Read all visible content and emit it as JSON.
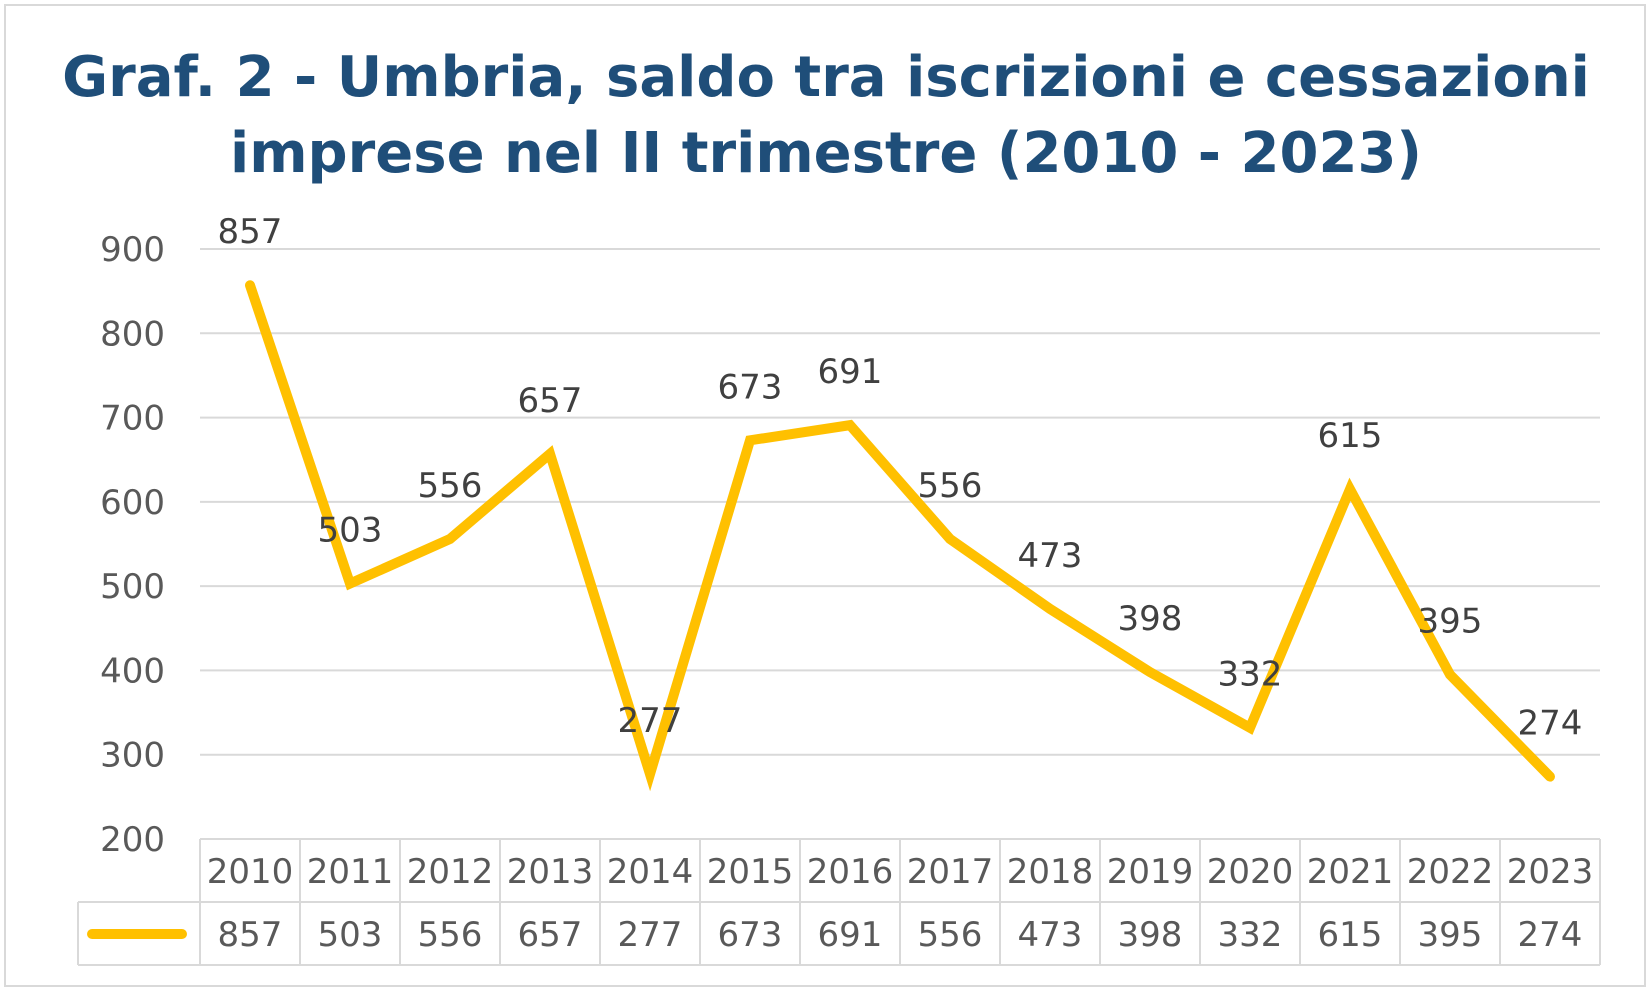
{
  "chart_data": {
    "type": "line",
    "title_line1": "Graf. 2 - Umbria, saldo tra iscrizioni e cessazioni",
    "title_line2": "imprese nel II trimestre (2010 - 2023)",
    "categories": [
      "2010",
      "2011",
      "2012",
      "2013",
      "2014",
      "2015",
      "2016",
      "2017",
      "2018",
      "2019",
      "2020",
      "2021",
      "2022",
      "2023"
    ],
    "values": [
      857,
      503,
      556,
      657,
      277,
      673,
      691,
      556,
      473,
      398,
      332,
      615,
      395,
      274
    ],
    "ylim": [
      200,
      900
    ],
    "yticks": [
      200,
      300,
      400,
      500,
      600,
      700,
      800,
      900
    ],
    "grid": true,
    "data_table": true,
    "series_color": "#ffc000",
    "title_color": "#1f4e79"
  }
}
